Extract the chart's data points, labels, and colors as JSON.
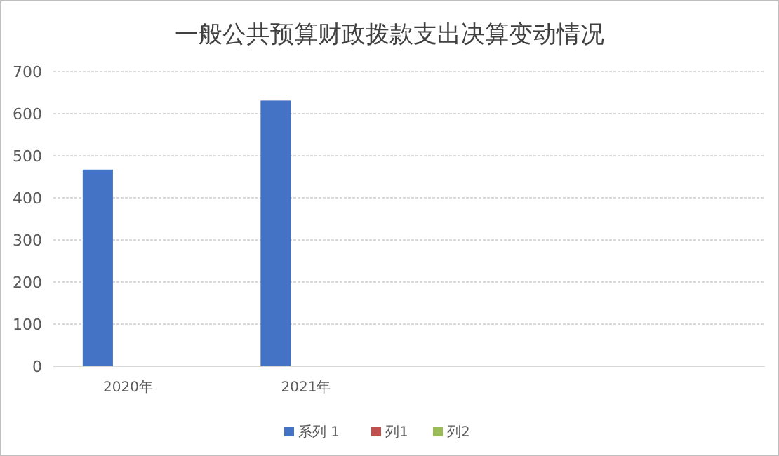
{
  "chart_data": {
    "type": "bar",
    "title": "一般公共预算财政拨款支出决算变动情况",
    "categories": [
      "2020年",
      "2021年",
      null,
      null
    ],
    "series": [
      {
        "name": "系列 1",
        "color": "#4472c4",
        "values": [
          467,
          631,
          null,
          null
        ]
      },
      {
        "name": "列1",
        "color": "#c0504d",
        "values": [
          null,
          null,
          null,
          null
        ]
      },
      {
        "name": "列2",
        "color": "#9bbb59",
        "values": [
          null,
          null,
          null,
          null
        ]
      }
    ],
    "ylim": [
      0,
      700
    ],
    "yticks": [
      0,
      100,
      200,
      300,
      400,
      500,
      600,
      700
    ],
    "grid": "y",
    "legend": "bottom"
  }
}
